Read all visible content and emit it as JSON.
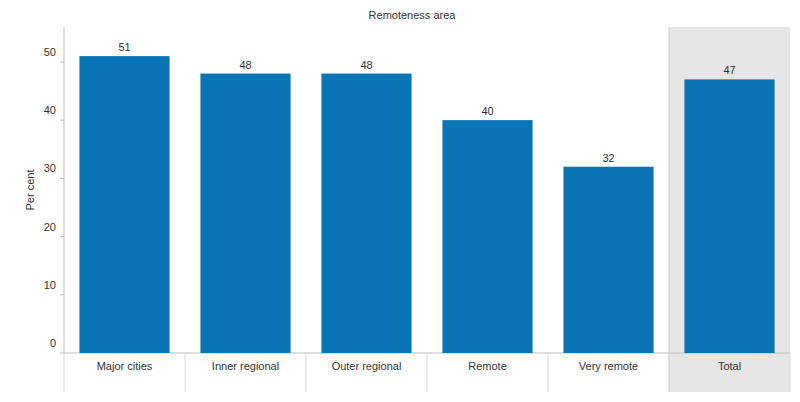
{
  "chart_data": {
    "type": "bar",
    "title": "Remoteness area",
    "y_label": "Per cent",
    "categories": [
      "Major cities",
      "Inner regional",
      "Outer regional",
      "Remote",
      "Very remote",
      "Total"
    ],
    "values": [
      51,
      48,
      48,
      40,
      32,
      47
    ],
    "color": "#0b74b4",
    "ylim": [
      0,
      56
    ],
    "yticks": [
      0,
      10,
      20,
      30,
      40,
      50
    ],
    "grid": false,
    "data_labels": true
  }
}
